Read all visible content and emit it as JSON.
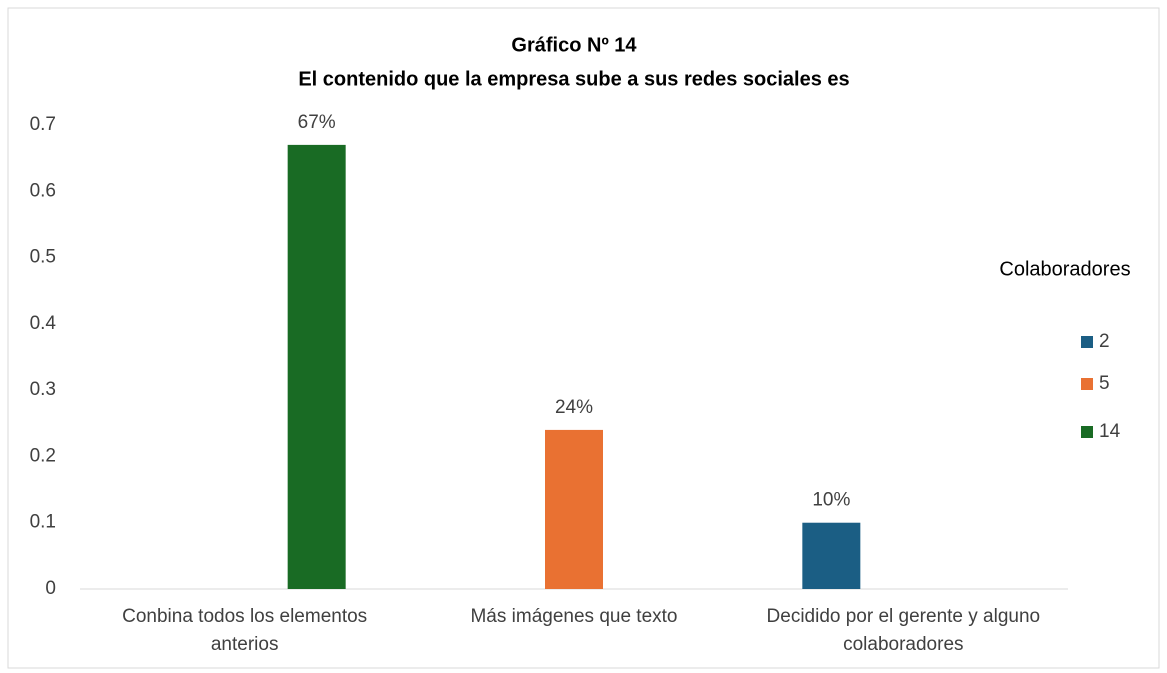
{
  "chart_data": {
    "type": "bar",
    "title": "Gráfico Nº 14",
    "subtitle": "El contenido que la empresa sube a sus redes sociales es",
    "legend_title": "Colaboradores",
    "legend": "right",
    "grid": false,
    "categories": [
      "Conbina todos los elementos anterios",
      "Más imágenes que texto",
      "Decidido por el gerente y alguno colaboradores"
    ],
    "series": [
      {
        "name": "2",
        "color": "#1b5e84",
        "values": [
          null,
          null,
          0.1
        ],
        "value_labels": [
          null,
          null,
          "10%"
        ]
      },
      {
        "name": "5",
        "color": "#e97132",
        "values": [
          null,
          0.24,
          null
        ],
        "value_labels": [
          null,
          "24%",
          null
        ]
      },
      {
        "name": "14",
        "color": "#196b24",
        "values": [
          0.67,
          null,
          null
        ],
        "value_labels": [
          "67%",
          null,
          null
        ]
      }
    ],
    "ylim": [
      0,
      0.7
    ],
    "yticks": [
      0,
      0.1,
      0.2,
      0.3,
      0.4,
      0.5,
      0.6,
      0.7
    ]
  }
}
